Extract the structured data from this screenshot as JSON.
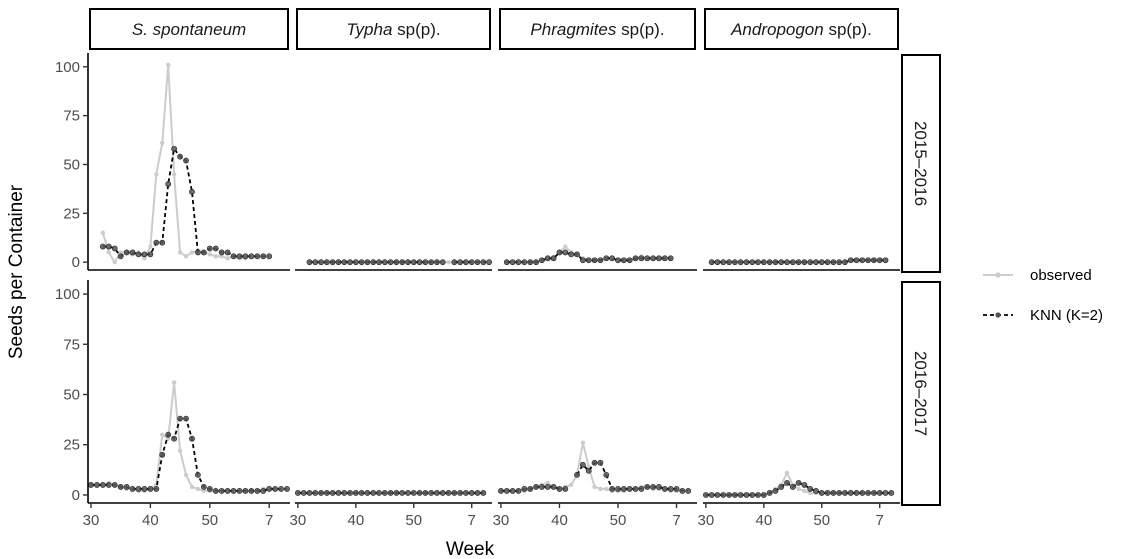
{
  "chart_data": {
    "type": "line",
    "title": "",
    "xlabel": "Week",
    "ylabel": "Seeds per Container",
    "facet_columns": [
      {
        "italic": "S. spontaneum",
        "suffix": ""
      },
      {
        "italic": "Typha",
        "suffix": " sp(p)."
      },
      {
        "italic": "Phragmites",
        "suffix": " sp(p)."
      },
      {
        "italic": "Andropogon",
        "suffix": " sp(p)."
      }
    ],
    "facet_rows": [
      "2015–2016",
      "2016–2017"
    ],
    "x_ticks": [
      {
        "label": "30",
        "index": 0
      },
      {
        "label": "40",
        "index": 10
      },
      {
        "label": "50",
        "index": 20
      },
      {
        "label": "7",
        "index": 30
      }
    ],
    "y_ticks": [
      0,
      25,
      50,
      75,
      100
    ],
    "ylim": [
      -4,
      105
    ],
    "x_index_range": [
      -0.5,
      33.5
    ],
    "legend": {
      "position": "right",
      "entries": [
        {
          "label": "observed",
          "color": "#cccccc",
          "style": "solid"
        },
        {
          "label": "KNN (K=2)",
          "color": "#000000",
          "style": "dashed"
        }
      ]
    },
    "colors": {
      "observed": "#cccccc",
      "knn": "#000000",
      "knn_fill": "#555555"
    },
    "panels": [
      {
        "row": 0,
        "col": 0,
        "start": 2,
        "observed": [
          15,
          5,
          0,
          5,
          5,
          4,
          5,
          2,
          8,
          45,
          61,
          101,
          45,
          5,
          3,
          5,
          6,
          5,
          4,
          3,
          3,
          2,
          3,
          2,
          2
        ],
        "knn": [
          8,
          8,
          7,
          3,
          5,
          5,
          4,
          4,
          4,
          10,
          10,
          40,
          58,
          54,
          52,
          36,
          5,
          5,
          7,
          7,
          5,
          5,
          3,
          3,
          3,
          3,
          3,
          3,
          3
        ]
      },
      {
        "row": 0,
        "col": 1,
        "start": 2,
        "observed": [
          0,
          0,
          0,
          0,
          0,
          0,
          0,
          0,
          0,
          0,
          0,
          0,
          0,
          0,
          0,
          0,
          0,
          0,
          0,
          0,
          0,
          0,
          0,
          0,
          0,
          0,
          0,
          0,
          0
        ],
        "knn": [
          0,
          0,
          0,
          0,
          0,
          0,
          0,
          0,
          0,
          0,
          0,
          0,
          0,
          0,
          0,
          0,
          0,
          0,
          0,
          0,
          0,
          0,
          0,
          0,
          null,
          0,
          0,
          0,
          0,
          0,
          0,
          0
        ]
      },
      {
        "row": 0,
        "col": 2,
        "start": 1,
        "observed": [
          0,
          0,
          0,
          0,
          0,
          0,
          1,
          2,
          2,
          5,
          8,
          5,
          4,
          2,
          1,
          1,
          1,
          2,
          2,
          1,
          1,
          1,
          2,
          3,
          2,
          2,
          2,
          2,
          2
        ],
        "knn": [
          0,
          0,
          0,
          0,
          0,
          0,
          1,
          2,
          2,
          5,
          5,
          4,
          4,
          1,
          1,
          1,
          1,
          2,
          2,
          1,
          1,
          1,
          2,
          2,
          2,
          2,
          2,
          2,
          2
        ]
      },
      {
        "row": 0,
        "col": 3,
        "start": 1,
        "observed": [
          0,
          0,
          0,
          0,
          0,
          0,
          0,
          0,
          0,
          0,
          0,
          0,
          0,
          0,
          0,
          0,
          0,
          0,
          0,
          0,
          0,
          0,
          0,
          0,
          1,
          1,
          1,
          1,
          1,
          1,
          1
        ],
        "knn": [
          0,
          0,
          0,
          0,
          0,
          0,
          0,
          0,
          0,
          0,
          0,
          0,
          0,
          0,
          0,
          0,
          0,
          0,
          0,
          0,
          0,
          0,
          0,
          0,
          1,
          1,
          1,
          1,
          1,
          1,
          1
        ]
      },
      {
        "row": 1,
        "col": 0,
        "start": 0,
        "observed": [
          5,
          5,
          5,
          6,
          5,
          4,
          3,
          3,
          2,
          2,
          3,
          5,
          30,
          28,
          56,
          22,
          10,
          4,
          3,
          2,
          2,
          2,
          2,
          2,
          2,
          2,
          2,
          2,
          2,
          3,
          3,
          3
        ],
        "knn": [
          5,
          5,
          5,
          5,
          5,
          4,
          4,
          3,
          3,
          3,
          3,
          3,
          20,
          30,
          28,
          38,
          38,
          28,
          10,
          4,
          3,
          2,
          2,
          2,
          2,
          2,
          2,
          2,
          2,
          2,
          3,
          3,
          3,
          3
        ]
      },
      {
        "row": 1,
        "col": 1,
        "start": 0,
        "observed": [
          1,
          1,
          1,
          1,
          1,
          1,
          1,
          1,
          1,
          1,
          1,
          1,
          1,
          1,
          1,
          1,
          1,
          1,
          1,
          1,
          1,
          1,
          1,
          1,
          1,
          1,
          1,
          1,
          1,
          1,
          1,
          1,
          1
        ],
        "knn": [
          1,
          1,
          1,
          1,
          1,
          1,
          1,
          1,
          1,
          1,
          1,
          1,
          1,
          1,
          1,
          1,
          1,
          1,
          1,
          1,
          1,
          1,
          1,
          1,
          1,
          1,
          1,
          1,
          1,
          1,
          1,
          1,
          1
        ]
      },
      {
        "row": 1,
        "col": 2,
        "start": 0,
        "observed": [
          2,
          2,
          2,
          2,
          2,
          3,
          4,
          5,
          6,
          4,
          3,
          4,
          5,
          10,
          26,
          14,
          4,
          3,
          3,
          2,
          2,
          2,
          3,
          3,
          4,
          4,
          3,
          3,
          3,
          2,
          2,
          2
        ],
        "knn": [
          2,
          2,
          2,
          2,
          3,
          3,
          4,
          4,
          4,
          4,
          3,
          3,
          null,
          10,
          15,
          12,
          16,
          16,
          10,
          3,
          3,
          3,
          3,
          3,
          3,
          4,
          4,
          4,
          3,
          3,
          3,
          2,
          2
        ]
      },
      {
        "row": 1,
        "col": 3,
        "start": 0,
        "observed": [
          0,
          0,
          0,
          0,
          0,
          0,
          0,
          0,
          0,
          0,
          0,
          1,
          3,
          5,
          11,
          5,
          3,
          2,
          1,
          1,
          1,
          1,
          1,
          1,
          1,
          1,
          1,
          1,
          1,
          1,
          1
        ],
        "knn": [
          0,
          0,
          0,
          0,
          0,
          0,
          0,
          0,
          0,
          0,
          0,
          1,
          2,
          4,
          6,
          4,
          6,
          5,
          3,
          2,
          1,
          1,
          1,
          1,
          1,
          1,
          1,
          1,
          1,
          1,
          1,
          1,
          1
        ]
      }
    ]
  }
}
